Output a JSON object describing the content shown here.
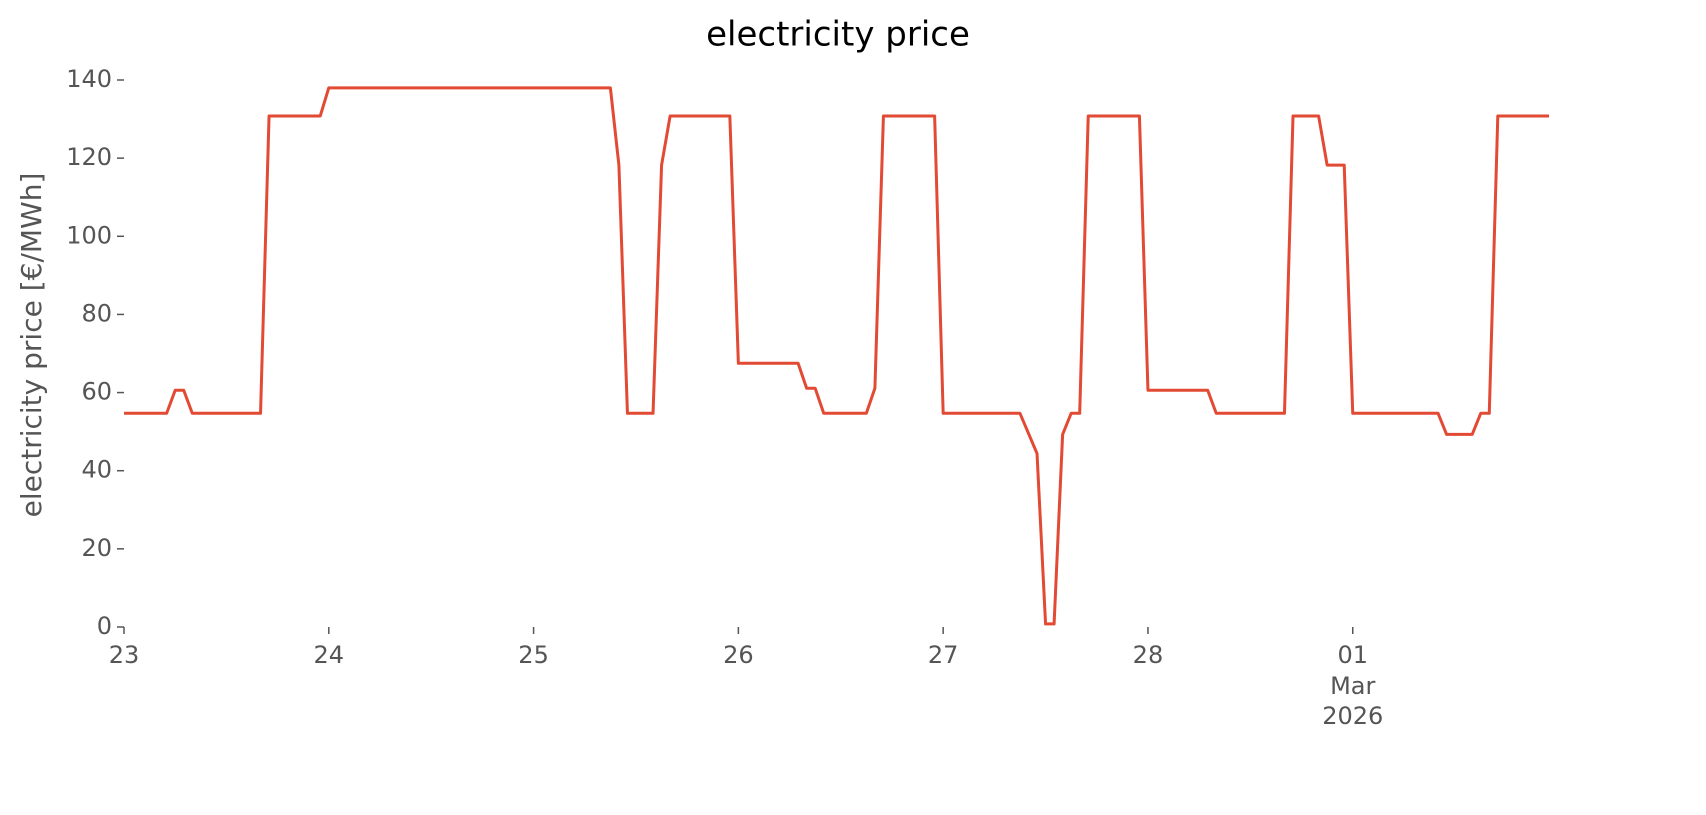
{
  "chart_data": {
    "type": "line",
    "title": "electricity price",
    "y_label": "electricity price [€/MWh]",
    "x": [
      0,
      5,
      6,
      7,
      8,
      16,
      17,
      23,
      24,
      57,
      58,
      59,
      62,
      63,
      64,
      71,
      72,
      79,
      80,
      81,
      82,
      87,
      88,
      89,
      95,
      96,
      105,
      107,
      108,
      109,
      110,
      111,
      112,
      113,
      119,
      120,
      127,
      128,
      136,
      137,
      140,
      141,
      143,
      144,
      154,
      155,
      158,
      159,
      160,
      161,
      167
    ],
    "values": [
      54.7,
      54.7,
      60.6,
      60.6,
      54.7,
      54.7,
      130.8,
      130.8,
      138,
      138,
      118.2,
      54.7,
      54.7,
      118.2,
      130.8,
      130.8,
      67.5,
      67.5,
      61.1,
      61.1,
      54.7,
      54.7,
      61.1,
      130.8,
      130.8,
      54.7,
      54.7,
      44.4,
      0.8,
      0.8,
      49.3,
      54.7,
      54.7,
      130.8,
      130.8,
      60.6,
      60.6,
      54.7,
      54.7,
      130.8,
      130.8,
      118.2,
      118.2,
      54.7,
      54.7,
      49.3,
      49.3,
      54.7,
      54.7,
      130.8,
      130.8
    ],
    "color": "#e24a33",
    "xlim": [
      0,
      167
    ],
    "xticks": [
      {
        "value": 0,
        "label": "23"
      },
      {
        "value": 24,
        "label": "24"
      },
      {
        "value": 48,
        "label": "25"
      },
      {
        "value": 72,
        "label": "26"
      },
      {
        "value": 96,
        "label": "27"
      },
      {
        "value": 120,
        "label": "28"
      },
      {
        "value": 144,
        "label": "01"
      }
    ],
    "x_month_label": "Mar",
    "x_year_label": "2026",
    "ylim": [
      0,
      140
    ],
    "yticks": [
      0,
      20,
      40,
      60,
      80,
      100,
      120,
      140
    ],
    "grid": false
  }
}
